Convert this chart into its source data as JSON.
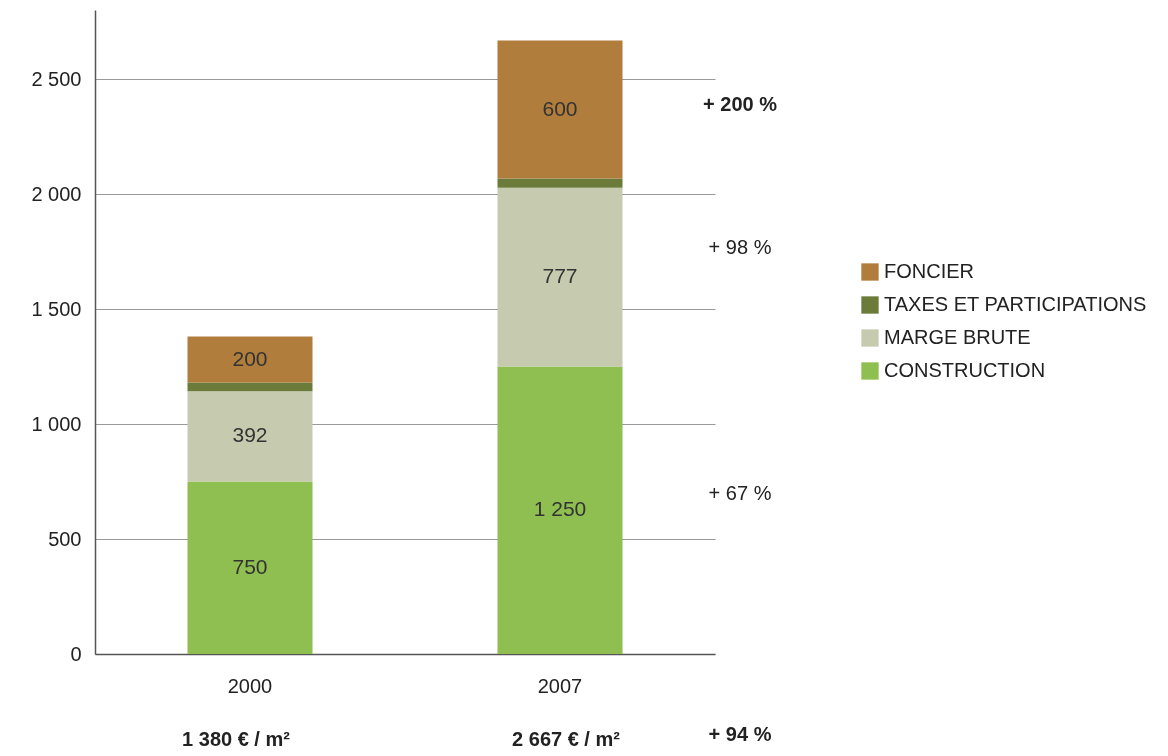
{
  "chart_data": {
    "type": "bar",
    "stacked": true,
    "categories": [
      "2000",
      "2007"
    ],
    "series": [
      {
        "name": "CONSTRUCTION",
        "color": "#8fbf50",
        "values": [
          750,
          1250
        ],
        "value_labels": [
          "750",
          "1 250"
        ]
      },
      {
        "name": "MARGE BRUTE",
        "color": "#c6cbb0",
        "values": [
          392,
          777
        ],
        "value_labels": [
          "392",
          "777"
        ]
      },
      {
        "name": "TAXES ET PARTICIPATIONS",
        "color": "#6b7c3a",
        "values": [
          38,
          40
        ],
        "value_labels": [
          null,
          null
        ]
      },
      {
        "name": "FONCIER",
        "color": "#b07d3c",
        "values": [
          200,
          600
        ],
        "value_labels": [
          "200",
          "600"
        ]
      }
    ],
    "ylim": [
      0,
      2800
    ],
    "yticks": [
      0,
      {
        "value": 500,
        "label": "500"
      },
      {
        "value": 1000,
        "label": "1 000"
      },
      {
        "value": 1500,
        "label": "1 500"
      },
      {
        "value": 2000,
        "label": "2 000"
      },
      {
        "value": 2500,
        "label": "2 500"
      }
    ],
    "grid": "y",
    "legend": "right",
    "annotations": [
      "+ 200 %",
      "+ 98 %",
      "+ 67 %",
      "1 380 € / m²",
      "2 667 € / m²",
      "+ 94 %"
    ]
  }
}
